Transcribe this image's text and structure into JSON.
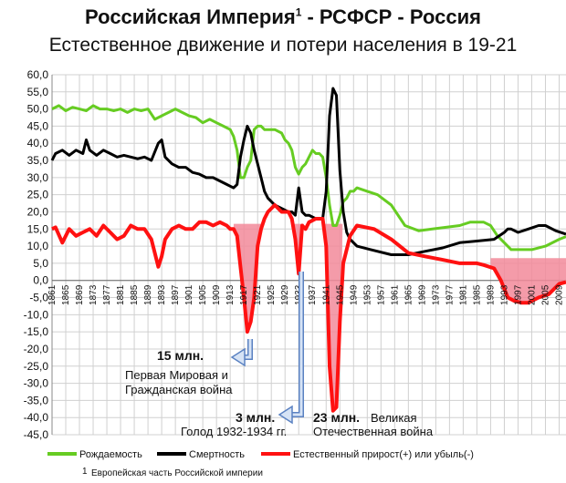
{
  "title": "Российская Империя",
  "title_sup": "1",
  "title_rest": " - РСФСР - Россия",
  "subtitle": "Естественное движение и потери населения в 19-21",
  "annotations": {
    "ww1_value": "15 млн.",
    "ww1_line1": "Первая Мировая и",
    "ww1_line2": "Гражданская война",
    "famine_value": "3 млн.",
    "famine_line": "Голод 1932-1934 гг.",
    "ww2_value": "23 млн.",
    "ww2_line1": "Великая",
    "ww2_line2": "Отечественная война"
  },
  "footnote_num": "1",
  "footnote": "Европейская часть Российской империи",
  "chart_data": {
    "type": "line",
    "ylim": [
      -45,
      60
    ],
    "yticks": [
      "60,0",
      "55,0",
      "50,0",
      "45,0",
      "40,0",
      "35,0",
      "30,0",
      "25,0",
      "20,0",
      "15,0",
      "10,0",
      "5,0",
      "0,0",
      "-5,0",
      "-10,0",
      "-15,0",
      "-20,0",
      "-25,0",
      "-30,0",
      "-35,0",
      "-40,0",
      "-45,0"
    ],
    "xlim": [
      1861,
      2011
    ],
    "xticks": [
      "1861",
      "1865",
      "1869",
      "1873",
      "1877",
      "1881",
      "1885",
      "1889",
      "1893",
      "1897",
      "1901",
      "1905",
      "1909",
      "1913",
      "1917",
      "1921",
      "1925",
      "1929",
      "1933",
      "1937",
      "1941",
      "1945",
      "1949",
      "1953",
      "1957",
      "1961",
      "1965",
      "1969",
      "1973",
      "1977",
      "1981",
      "1985",
      "1989",
      "1993",
      "1997",
      "2001",
      "2005",
      "2009"
    ],
    "legend_position": "bottom",
    "grid": true,
    "colors": {
      "birth": "#66cc22",
      "death": "#000000",
      "natural": "#ff1111",
      "fill": "#f28a9a"
    },
    "series": [
      {
        "name": "Рождаемость",
        "x": [
          1861,
          1863,
          1865,
          1867,
          1869,
          1871,
          1873,
          1875,
          1877,
          1879,
          1881,
          1883,
          1885,
          1887,
          1889,
          1891,
          1893,
          1895,
          1897,
          1899,
          1901,
          1903,
          1905,
          1907,
          1909,
          1911,
          1913,
          1914,
          1915,
          1916,
          1917,
          1918,
          1919,
          1920,
          1921,
          1922,
          1923,
          1924,
          1926,
          1928,
          1929,
          1930,
          1931,
          1932,
          1933,
          1934,
          1935,
          1936,
          1937,
          1938,
          1939,
          1940,
          1941,
          1942,
          1943,
          1944,
          1945,
          1946,
          1947,
          1948,
          1949,
          1950,
          1953,
          1956,
          1960,
          1964,
          1968,
          1972,
          1976,
          1980,
          1983,
          1985,
          1987,
          1989,
          1991,
          1993,
          1995,
          1999,
          2001,
          2005,
          2009,
          2011
        ],
        "y": [
          50,
          51,
          49.5,
          50.5,
          50,
          49.5,
          51,
          50,
          50,
          49.5,
          50,
          49,
          50,
          49.5,
          50,
          47,
          48,
          49,
          50,
          49,
          48,
          47.5,
          46,
          47,
          46,
          45,
          44,
          42,
          38,
          30,
          30,
          33,
          35,
          44,
          45,
          45,
          44,
          44,
          44,
          43,
          41,
          40,
          38,
          33,
          31,
          33,
          34,
          36,
          38,
          37,
          37,
          36,
          30,
          22,
          16,
          16,
          19,
          23,
          24,
          26,
          26,
          27,
          26,
          25,
          22,
          16,
          14.5,
          15,
          15.5,
          16,
          17,
          17,
          17,
          16,
          13,
          11,
          9,
          9,
          9,
          10,
          12,
          12.8
        ]
      },
      {
        "name": "Смертность",
        "x": [
          1861,
          1862,
          1864,
          1866,
          1868,
          1870,
          1871,
          1872,
          1874,
          1876,
          1878,
          1880,
          1882,
          1884,
          1886,
          1888,
          1890,
          1892,
          1893,
          1894,
          1896,
          1898,
          1900,
          1902,
          1904,
          1906,
          1908,
          1910,
          1912,
          1913,
          1914,
          1915,
          1916,
          1917,
          1918,
          1919,
          1920,
          1921,
          1922,
          1923,
          1924,
          1926,
          1928,
          1930,
          1931,
          1932,
          1933,
          1934,
          1935,
          1936,
          1938,
          1940,
          1941,
          1942,
          1943,
          1944,
          1945,
          1946,
          1947,
          1948,
          1950,
          1954,
          1960,
          1965,
          1970,
          1975,
          1980,
          1985,
          1990,
          1993,
          1994,
          1995,
          1997,
          2000,
          2003,
          2005,
          2008,
          2011
        ],
        "y": [
          35,
          37,
          38,
          36.5,
          38,
          37,
          41,
          38,
          36.5,
          38,
          37,
          36,
          36.5,
          36,
          35.5,
          36,
          35,
          40,
          41,
          36,
          34,
          33,
          33,
          31.5,
          31,
          30,
          30,
          29,
          28,
          27.5,
          27,
          28,
          36,
          41,
          45,
          43,
          38,
          34,
          30,
          26,
          24,
          22,
          21,
          20,
          20,
          19,
          27,
          20,
          19,
          19,
          18,
          18,
          26,
          48,
          56,
          54,
          32,
          20,
          14,
          12,
          10,
          9,
          7.5,
          7.5,
          8.5,
          9.5,
          11,
          11.5,
          12,
          14,
          15,
          15,
          14,
          15,
          16,
          16,
          14.5,
          13.5
        ]
      },
      {
        "name": "Естественный прирост(+) или убыль(-)",
        "x": [
          1861,
          1862,
          1864,
          1866,
          1868,
          1870,
          1872,
          1874,
          1876,
          1878,
          1880,
          1882,
          1884,
          1886,
          1888,
          1890,
          1891,
          1892,
          1893,
          1894,
          1896,
          1898,
          1900,
          1902,
          1904,
          1906,
          1908,
          1910,
          1912,
          1913,
          1914,
          1915,
          1916,
          1917,
          1918,
          1919,
          1920,
          1921,
          1922,
          1923,
          1924,
          1926,
          1928,
          1930,
          1931,
          1932,
          1933,
          1934,
          1935,
          1936,
          1938,
          1940,
          1941,
          1942,
          1943,
          1944,
          1945,
          1946,
          1948,
          1950,
          1955,
          1960,
          1965,
          1970,
          1975,
          1980,
          1985,
          1987,
          1990,
          1992,
          1994,
          1996,
          1998,
          2000,
          2003,
          2006,
          2009,
          2011
        ],
        "y": [
          15,
          15.5,
          11,
          15,
          13,
          14,
          15,
          13,
          16,
          14,
          12,
          13,
          16,
          15,
          15,
          12,
          8,
          4,
          7,
          12,
          15,
          16,
          15,
          15,
          17,
          17,
          16,
          17,
          16,
          15,
          15,
          13,
          4,
          -5,
          -15,
          -12,
          -5,
          10,
          15,
          18,
          20,
          22,
          20,
          20,
          18,
          12,
          2,
          16,
          15,
          17,
          18,
          18,
          10,
          -25,
          -38,
          -37,
          -12,
          5,
          13,
          16,
          15,
          12,
          8,
          7,
          6,
          5,
          5,
          4.5,
          3.5,
          0,
          -5,
          -6,
          -6.5,
          -6.5,
          -5,
          -4,
          -1,
          -0.5
        ]
      }
    ]
  }
}
